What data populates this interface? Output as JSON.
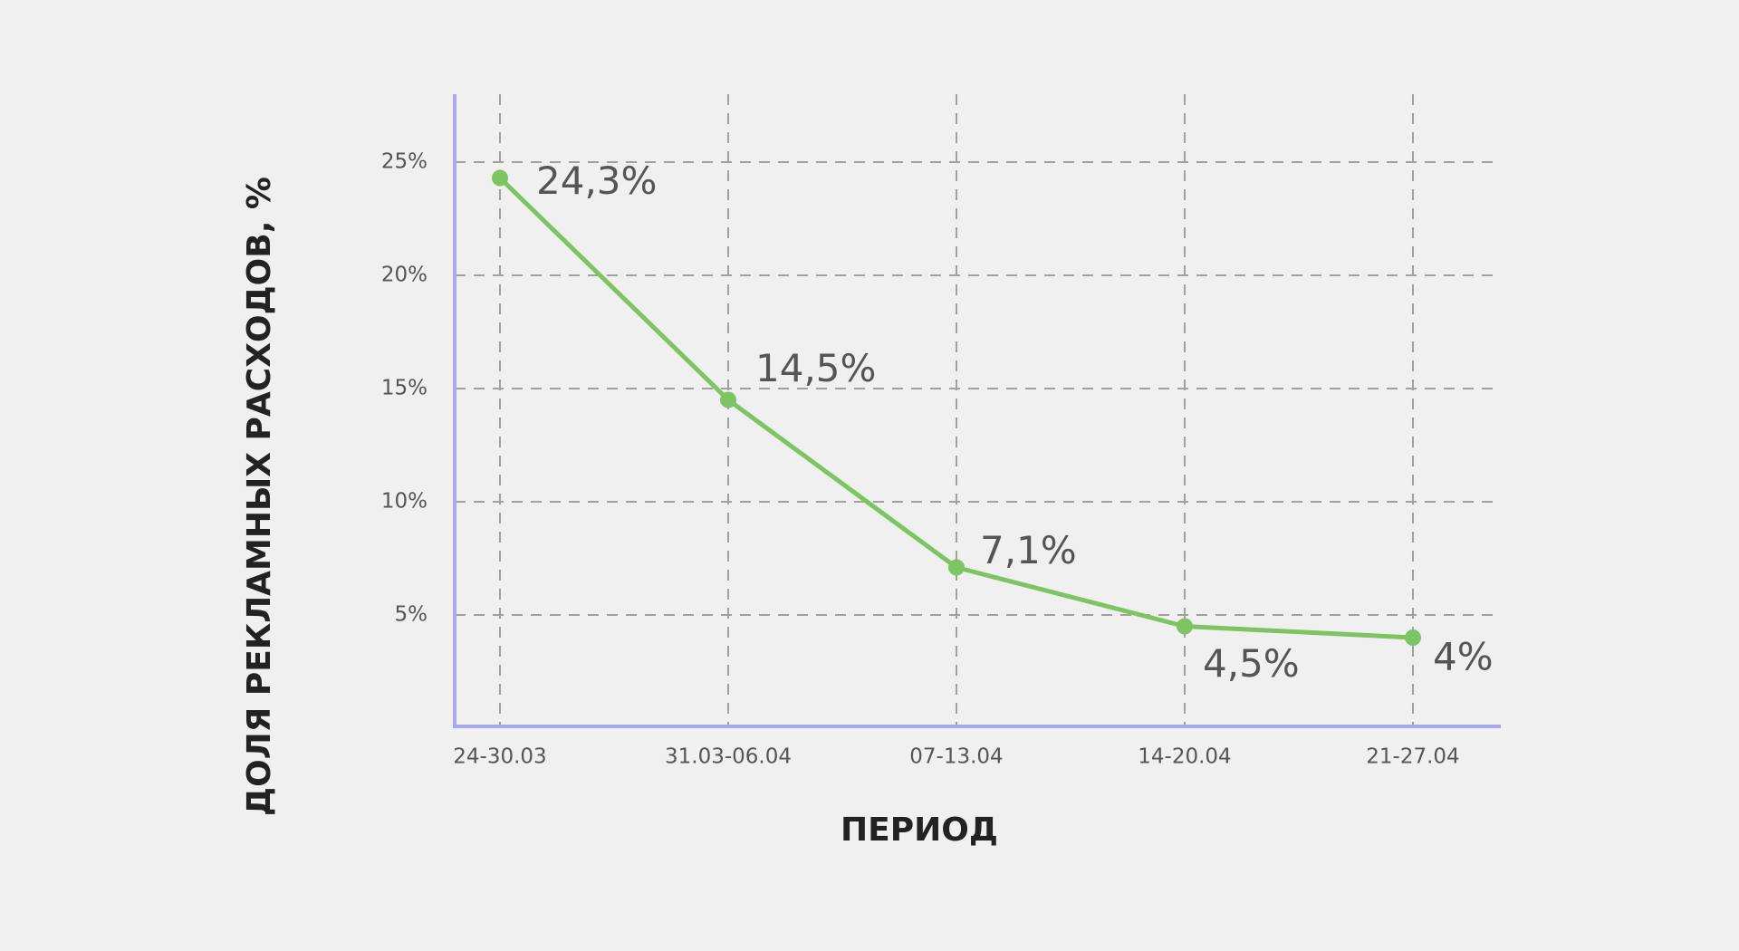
{
  "chart_data": {
    "type": "line",
    "x_label": "ПЕРИОД",
    "y_label": "ДОЛЯ РЕКЛАМНЫХ РАСХОДОВ, %",
    "categories": [
      "24-30.03",
      "31.03-06.04",
      "07-13.04",
      "14-20.04",
      "21-27.04"
    ],
    "series": [
      {
        "name": "Доля рекламных расходов",
        "color": "#7dc462",
        "values": [
          24.3,
          14.5,
          7.1,
          4.5,
          4
        ],
        "value_labels": [
          "24,3%",
          "14,5%",
          "7,1%",
          "4,5%",
          "4%"
        ]
      }
    ],
    "ylim": [
      0,
      28
    ],
    "yticks": [
      {
        "value": 5,
        "label": "5%"
      },
      {
        "value": 10,
        "label": "10%"
      },
      {
        "value": 15,
        "label": "15%"
      },
      {
        "value": 20,
        "label": "20%"
      },
      {
        "value": 25,
        "label": "25%"
      }
    ],
    "grid": true,
    "axis_color": "#a9a6ef"
  }
}
